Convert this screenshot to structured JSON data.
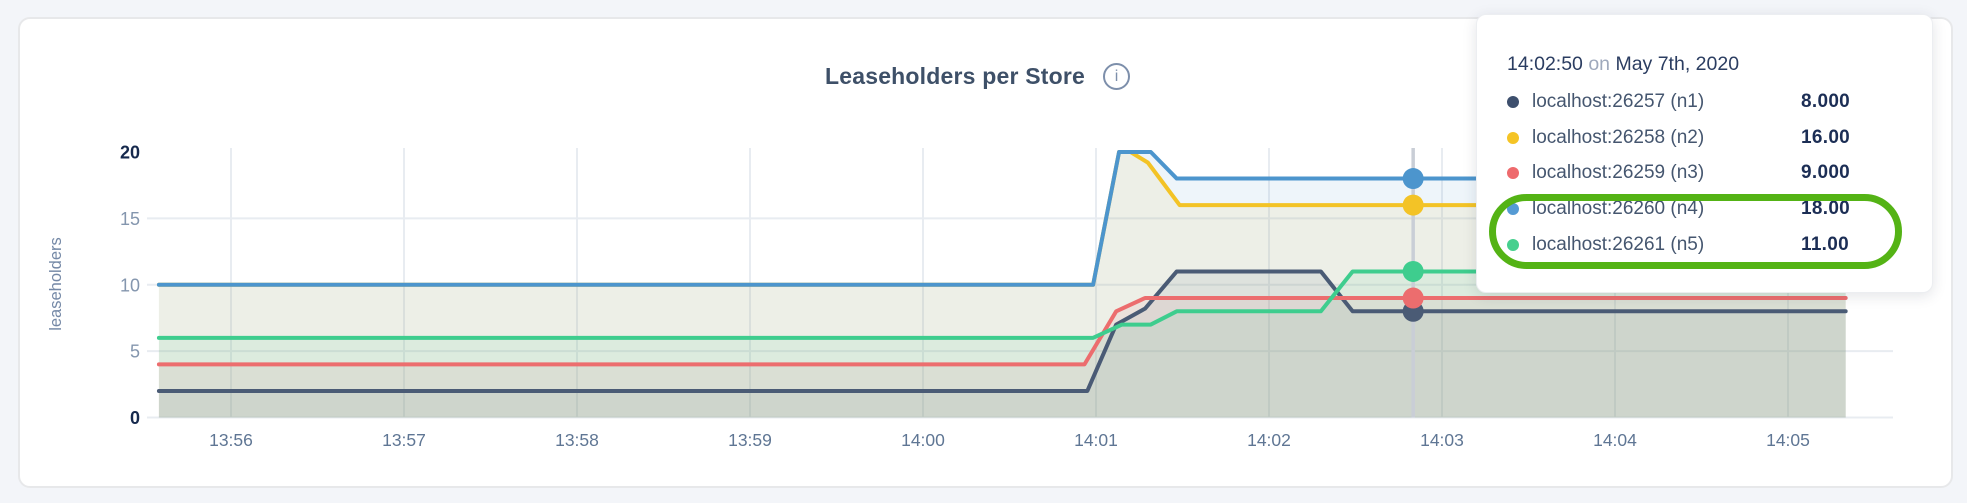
{
  "page": {
    "background": "#f3f5f9"
  },
  "header": {
    "title": "Leaseholders per Store",
    "info_glyph": "i"
  },
  "chart_data": {
    "type": "area",
    "title": "Leaseholders per Store",
    "xlabel": "",
    "ylabel": "leaseholders",
    "ylim": [
      0,
      20
    ],
    "y_ticks": [
      0,
      5,
      10,
      15,
      20
    ],
    "y_bold_ticks": [
      0,
      20
    ],
    "y_gridlines": [
      0,
      5,
      10,
      15
    ],
    "grid": true,
    "x_unit": "seconds since 13:55:00",
    "x_range": [
      35,
      620
    ],
    "x_ticks": [
      {
        "t": 60,
        "label": "13:56"
      },
      {
        "t": 120,
        "label": "13:57"
      },
      {
        "t": 180,
        "label": "13:58"
      },
      {
        "t": 240,
        "label": "13:59"
      },
      {
        "t": 300,
        "label": "14:00"
      },
      {
        "t": 360,
        "label": "14:01"
      },
      {
        "t": 420,
        "label": "14:02"
      },
      {
        "t": 480,
        "label": "14:03"
      },
      {
        "t": 540,
        "label": "14:04"
      },
      {
        "t": 600,
        "label": "14:05"
      }
    ],
    "series": [
      {
        "id": "n1",
        "name": "localhost:26257 (n1)",
        "color": "#4a5b75",
        "points": [
          [
            35,
            2
          ],
          [
            357,
            2
          ],
          [
            367,
            7
          ],
          [
            377,
            8.2
          ],
          [
            388,
            11
          ],
          [
            438,
            11
          ],
          [
            449,
            8
          ],
          [
            620,
            8
          ]
        ]
      },
      {
        "id": "n2",
        "name": "localhost:26258 (n2)",
        "color": "#f3c326",
        "points": [
          [
            35,
            10
          ],
          [
            359,
            10
          ],
          [
            368,
            20
          ],
          [
            372,
            20
          ],
          [
            378,
            19.2
          ],
          [
            389,
            16
          ],
          [
            620,
            16
          ]
        ]
      },
      {
        "id": "n3",
        "name": "localhost:26259 (n3)",
        "color": "#ec6d6e",
        "points": [
          [
            35,
            4
          ],
          [
            356,
            4
          ],
          [
            367,
            8
          ],
          [
            377,
            9
          ],
          [
            620,
            9
          ]
        ]
      },
      {
        "id": "n4",
        "name": "localhost:26260 (n4)",
        "color": "#4c95cd",
        "points": [
          [
            35,
            10
          ],
          [
            359,
            10
          ],
          [
            368,
            20
          ],
          [
            379,
            20
          ],
          [
            388,
            18
          ],
          [
            620,
            18
          ]
        ]
      },
      {
        "id": "n5",
        "name": "localhost:26261 (n5)",
        "color": "#3ecd8e",
        "points": [
          [
            35,
            6
          ],
          [
            359,
            6
          ],
          [
            369,
            7
          ],
          [
            379,
            7
          ],
          [
            388,
            8
          ],
          [
            438,
            8
          ],
          [
            449,
            11
          ],
          [
            620,
            11
          ]
        ]
      }
    ],
    "hover": {
      "t": 470,
      "time": "14:02:50",
      "values": [
        8,
        16,
        9,
        18,
        11
      ]
    },
    "axis_colors": {
      "grid": "#e8ecf1",
      "hover_line": "#c9ced6",
      "y_tick_bold": "#16294d",
      "y_tick_light": "#8496ae",
      "x_tick": "#5f7694",
      "y_title": "#7488a6"
    }
  },
  "tooltip": {
    "time": "14:02:50",
    "on_word": "on",
    "date": "May 7th, 2020",
    "rows": [
      {
        "label": "localhost:26257 (n1)",
        "value": "8.000",
        "color": "#3d4f6d"
      },
      {
        "label": "localhost:26258 (n2)",
        "value": "16.00",
        "color": "#f5c425"
      },
      {
        "label": "localhost:26259 (n3)",
        "value": "9.000",
        "color": "#ee6a6d"
      },
      {
        "label": "localhost:26260 (n4)",
        "value": "18.00",
        "color": "#559bd4"
      },
      {
        "label": "localhost:26261 (n5)",
        "value": "11.00",
        "color": "#46d08e"
      }
    ]
  },
  "annotation": {
    "color": "#54b315"
  }
}
